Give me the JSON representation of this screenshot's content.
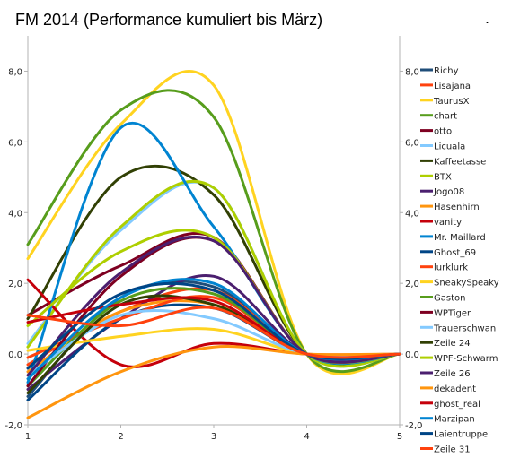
{
  "chart_data": {
    "type": "line",
    "title": "FM 2014 (Performance kumuliert bis März)",
    "title_mark": ".",
    "x": [
      1,
      2,
      3,
      4,
      5
    ],
    "x_ticks": [
      "1",
      "2",
      "3",
      "4",
      "5"
    ],
    "ylim": [
      -2,
      9
    ],
    "y_ticks": [
      "-2,0",
      "0,0",
      "2,0",
      "4,0",
      "6,0",
      "8,0"
    ],
    "y_tick_values": [
      -2,
      0,
      2,
      4,
      6,
      8
    ],
    "secondary_y_ticks": [
      "-2,0",
      "0,0",
      "2,0",
      "4,0",
      "6,0",
      "8,0"
    ],
    "grid": false,
    "legend_position": "right",
    "series": [
      {
        "name": "Richy",
        "color": "#1f4e79",
        "values": [
          -1.2,
          1.6,
          1.9,
          0.0,
          0.0
        ]
      },
      {
        "name": "Lisajana",
        "color": "#ff420e",
        "values": [
          -0.3,
          1.2,
          1.8,
          0.0,
          0.0
        ]
      },
      {
        "name": "TaurusX",
        "color": "#ffd320",
        "values": [
          2.7,
          6.5,
          7.6,
          0.0,
          0.0
        ]
      },
      {
        "name": "chart",
        "color": "#579d1c",
        "values": [
          3.1,
          6.9,
          6.7,
          0.0,
          0.0
        ]
      },
      {
        "name": "otto",
        "color": "#7e0021",
        "values": [
          1.1,
          2.5,
          3.3,
          0.0,
          0.0
        ]
      },
      {
        "name": "Licuala",
        "color": "#83caff",
        "values": [
          0.3,
          3.5,
          4.7,
          0.0,
          0.0
        ]
      },
      {
        "name": "Kaffeetasse",
        "color": "#314004",
        "values": [
          1.0,
          5.0,
          4.5,
          0.0,
          0.0
        ]
      },
      {
        "name": "BTX",
        "color": "#aecf00",
        "values": [
          0.2,
          3.6,
          4.7,
          0.0,
          0.0
        ]
      },
      {
        "name": "Jogo08",
        "color": "#4b1f6f",
        "values": [
          -1.0,
          1.0,
          2.2,
          0.0,
          0.0
        ]
      },
      {
        "name": "Hasenhirn",
        "color": "#ff950e",
        "values": [
          -0.5,
          1.2,
          1.4,
          0.0,
          0.0
        ]
      },
      {
        "name": "vanity",
        "color": "#c5000b",
        "values": [
          2.1,
          -0.3,
          0.3,
          0.0,
          0.0
        ]
      },
      {
        "name": "Mr. Maillard",
        "color": "#0084d1",
        "values": [
          -0.8,
          6.4,
          3.6,
          0.0,
          0.0
        ]
      },
      {
        "name": "Ghost_69",
        "color": "#004586",
        "values": [
          -1.3,
          1.0,
          1.3,
          0.0,
          0.0
        ]
      },
      {
        "name": "lurklurk",
        "color": "#ff420e",
        "values": [
          -0.1,
          1.0,
          1.6,
          0.0,
          0.0
        ]
      },
      {
        "name": "SneakySpeaky",
        "color": "#ffd320",
        "values": [
          0.1,
          0.5,
          0.7,
          0.0,
          0.0
        ]
      },
      {
        "name": "Gaston",
        "color": "#579d1c",
        "values": [
          -0.9,
          1.5,
          1.7,
          0.0,
          0.0
        ]
      },
      {
        "name": "WPTiger",
        "color": "#7e0021",
        "values": [
          -0.9,
          2.2,
          3.2,
          0.0,
          0.0
        ]
      },
      {
        "name": "Trauerschwan",
        "color": "#83caff",
        "values": [
          -0.6,
          1.1,
          1.0,
          0.0,
          0.0
        ]
      },
      {
        "name": "Zeile 24",
        "color": "#314004",
        "values": [
          -1.1,
          1.4,
          1.4,
          0.0,
          0.0
        ]
      },
      {
        "name": "WPF-Schwarm",
        "color": "#aecf00",
        "values": [
          0.8,
          2.9,
          3.3,
          0.0,
          0.0
        ]
      },
      {
        "name": "Zeile 26",
        "color": "#4b1f6f",
        "values": [
          -0.6,
          2.3,
          3.2,
          0.0,
          0.0
        ]
      },
      {
        "name": "dekadent",
        "color": "#ff950e",
        "values": [
          -1.8,
          -0.5,
          0.2,
          0.0,
          0.0
        ]
      },
      {
        "name": "ghost_real",
        "color": "#c5000b",
        "values": [
          0.9,
          1.4,
          1.5,
          0.0,
          0.0
        ]
      },
      {
        "name": "Marzipan",
        "color": "#0084d1",
        "values": [
          -0.7,
          1.6,
          2.0,
          0.0,
          0.0
        ]
      },
      {
        "name": "Laientruppe",
        "color": "#004586",
        "values": [
          -0.4,
          1.7,
          1.8,
          0.0,
          0.0
        ]
      },
      {
        "name": "Zeile 31",
        "color": "#ff420e",
        "values": [
          1.1,
          0.8,
          1.3,
          0.0,
          0.0
        ]
      }
    ]
  }
}
